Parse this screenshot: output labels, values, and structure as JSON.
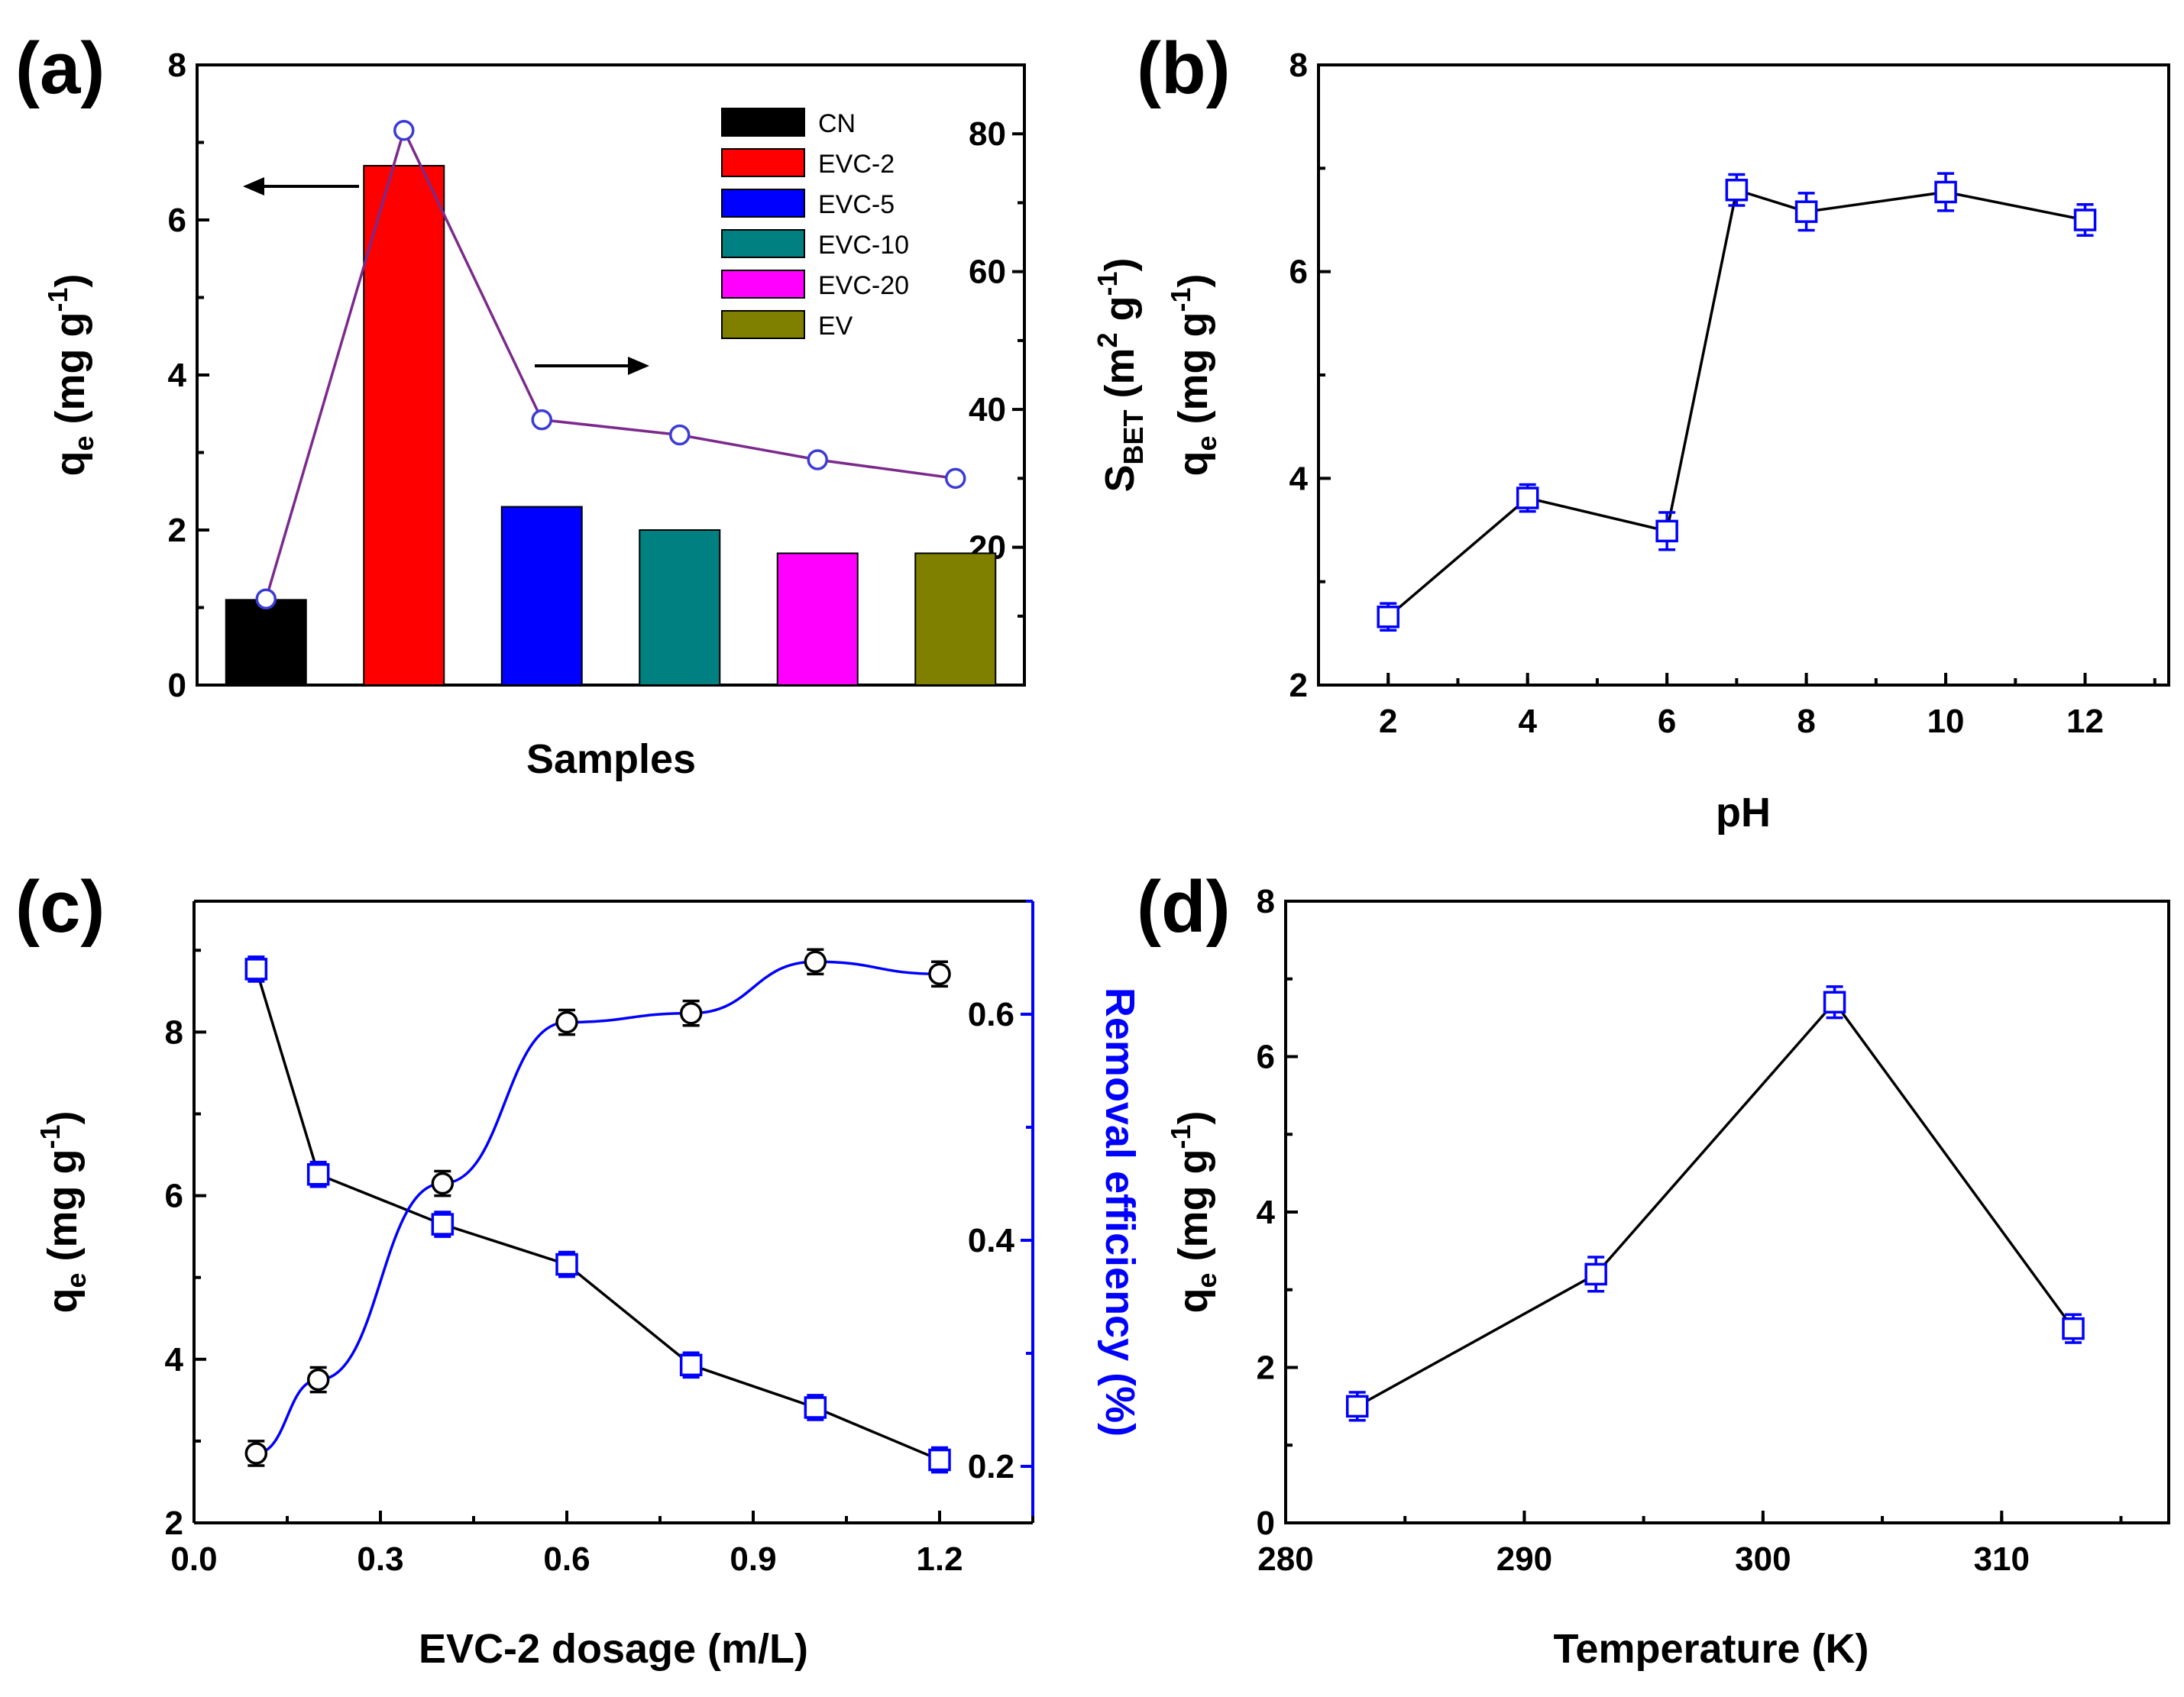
{
  "chart_data": [
    {
      "panel": "(a)",
      "type": "bar",
      "categories": [
        "CN",
        "EVC-2",
        "EVC-5",
        "EVC-10",
        "EVC-20",
        "EV"
      ],
      "values": [
        1.1,
        6.7,
        2.3,
        2.0,
        1.7,
        1.7
      ],
      "bar_colors": [
        "#000000",
        "#ff0000",
        "#0000ff",
        "#008080",
        "#ff00ff",
        "#808000"
      ],
      "line_series": {
        "values": [
          12.5,
          80.5,
          38.5,
          36.3,
          32.7,
          30.0
        ],
        "color": "#7b2a8c"
      },
      "xlabel": "Samples",
      "ylabel": {
        "main": "q",
        "sub": "e",
        "unit": " (mg g",
        "sup": "-1",
        "end": ")"
      },
      "ylabel_right": {
        "main": "S",
        "sub": "BET",
        "unit": " (m",
        "sup": "2",
        "unit2": " g",
        "sup2": "-1",
        "end": ")"
      },
      "ylim": [
        0,
        8
      ],
      "ylim_right": [
        0,
        90
      ],
      "yticks": [
        "0",
        "2",
        "4",
        "6",
        "8"
      ],
      "yticks_right": [
        "20",
        "40",
        "60",
        "80"
      ],
      "legend_placement": "top-right",
      "annotations": [
        "left arrow pointing to left axis",
        "right arrow pointing to right axis"
      ]
    },
    {
      "panel": "(b)",
      "type": "line",
      "x": [
        2,
        4,
        6,
        7,
        8,
        10,
        12
      ],
      "y": [
        2.66,
        3.81,
        3.49,
        6.79,
        6.58,
        6.77,
        6.5
      ],
      "yerr": [
        0.13,
        0.13,
        0.18,
        0.15,
        0.18,
        0.18,
        0.15
      ],
      "xlabel": "pH",
      "ylabel": {
        "main": "q",
        "sub": "e",
        "unit": " (mg g",
        "sup": "-1",
        "end": ")"
      },
      "xlim": [
        1,
        13.2
      ],
      "ylim": [
        2,
        8
      ],
      "xticks": [
        "2",
        "4",
        "6",
        "8",
        "10",
        "12"
      ],
      "yticks": [
        "2",
        "4",
        "6",
        "8"
      ],
      "marker": "open-square",
      "marker_color": "#0000ff"
    },
    {
      "panel": "(c)",
      "type": "line",
      "x": [
        0.1,
        0.2,
        0.4,
        0.6,
        0.8,
        1.0,
        1.2
      ],
      "series": [
        {
          "axis": "left",
          "values": [
            8.77,
            6.26,
            5.65,
            5.16,
            3.93,
            3.41,
            2.77
          ],
          "marker": "open-square",
          "line_color": "#000000",
          "marker_color": "#0000ff"
        },
        {
          "axis": "left",
          "values": [
            2.85,
            3.75,
            6.15,
            8.12,
            8.23,
            8.86,
            8.71
          ],
          "marker": "open-circle",
          "line_color": "#0000ff",
          "marker_color": "#000000"
        }
      ],
      "xlabel": "EVC-2 dosage (m/L)",
      "ylabel": {
        "main": "q",
        "sub": "e",
        "unit": " (mg g",
        "sup": "-1",
        "end": ")"
      },
      "ylabel_right": "Removal efficiency (%)",
      "xlim": [
        0,
        1.35
      ],
      "ylim": [
        2,
        9.6
      ],
      "ylim_right": [
        0.15,
        0.7
      ],
      "xticks": [
        "0.0",
        "0.3",
        "0.6",
        "0.9",
        "1.2"
      ],
      "yticks": [
        "2",
        "4",
        "6",
        "8"
      ],
      "yticks_right": [
        "0.2",
        "0.4",
        "0.6"
      ],
      "right_axis_color": "#0000ff"
    },
    {
      "panel": "(d)",
      "type": "line",
      "x": [
        283,
        293,
        303,
        313
      ],
      "y": [
        1.5,
        3.2,
        6.7,
        2.5
      ],
      "yerr": [
        0.18,
        0.22,
        0.2,
        0.18
      ],
      "xlabel": "Temperature (K)",
      "ylabel": {
        "main": "q",
        "sub": "e",
        "unit": " (mg g",
        "sup": "-1",
        "end": ")"
      },
      "xlim": [
        280,
        317
      ],
      "ylim": [
        0,
        8
      ],
      "xticks": [
        "280",
        "290",
        "300",
        "310"
      ],
      "yticks": [
        "0",
        "2",
        "4",
        "6",
        "8"
      ],
      "marker": "open-square",
      "marker_color": "#0000ff"
    }
  ]
}
